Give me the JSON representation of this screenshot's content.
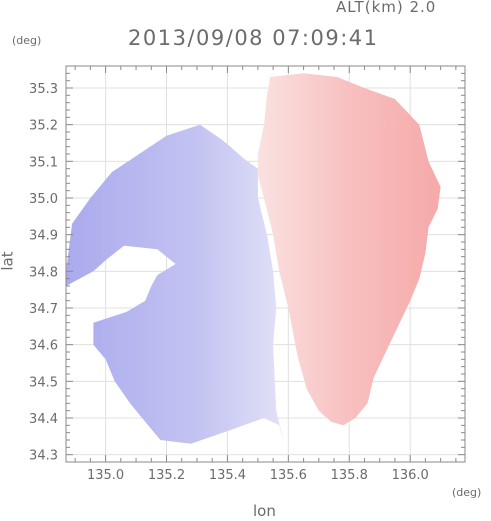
{
  "header": {
    "altitude_label": "ALT(km) 2.0",
    "timestamp": "2013/09/08 07:09:41"
  },
  "axes": {
    "y_unit": "(deg)",
    "x_unit": "(deg)",
    "x_label": "lon",
    "y_label": "lat",
    "x_ticks": [
      "135.0",
      "135.2",
      "135.4",
      "135.6",
      "135.8",
      "136.0"
    ],
    "y_ticks": [
      "35.3",
      "35.2",
      "35.1",
      "35.0",
      "34.9",
      "34.8",
      "34.7",
      "34.6",
      "34.5",
      "34.4",
      "34.3"
    ]
  },
  "colors": {
    "frame": "#8a8a8a",
    "grid": "#e0e0e0",
    "approaching": "#a9a9ee",
    "receding": "#f7b0b0"
  },
  "chart_data": {
    "type": "heatmap",
    "title": "2013/09/08 07:09:41",
    "subtitle": "ALT(km) 2.0",
    "xlabel": "lon",
    "ylabel": "lat",
    "x_unit": "deg",
    "y_unit": "deg",
    "xlim": [
      134.87,
      136.18
    ],
    "ylim": [
      34.28,
      35.36
    ],
    "x_tick_values": [
      135.0,
      135.2,
      135.4,
      135.6,
      135.8,
      136.0
    ],
    "y_tick_values": [
      35.3,
      35.2,
      35.1,
      35.0,
      34.9,
      34.8,
      34.7,
      34.6,
      34.5,
      34.4,
      34.3
    ],
    "grid": true,
    "colormap": "blue (negative) to red (positive) Doppler velocity",
    "regions": [
      {
        "name": "west-negative",
        "color": "#b7b7f0",
        "polygon": [
          [
            135.31,
            35.2
          ],
          [
            135.2,
            35.17
          ],
          [
            135.11,
            35.12
          ],
          [
            135.02,
            35.07
          ],
          [
            134.95,
            35.0
          ],
          [
            134.89,
            34.93
          ],
          [
            134.87,
            34.8
          ],
          [
            134.87,
            34.76
          ],
          [
            134.96,
            34.8
          ],
          [
            135.0,
            34.83
          ],
          [
            135.06,
            34.87
          ],
          [
            135.17,
            34.86
          ],
          [
            135.23,
            34.82
          ],
          [
            135.17,
            34.79
          ],
          [
            135.15,
            34.76
          ],
          [
            135.13,
            34.72
          ],
          [
            135.07,
            34.69
          ],
          [
            134.96,
            34.66
          ],
          [
            134.96,
            34.6
          ],
          [
            135.0,
            34.56
          ],
          [
            135.03,
            34.5
          ],
          [
            135.08,
            34.44
          ],
          [
            135.13,
            34.39
          ],
          [
            135.18,
            34.34
          ],
          [
            135.28,
            34.33
          ],
          [
            135.42,
            34.37
          ],
          [
            135.52,
            34.4
          ],
          [
            135.57,
            34.38
          ],
          [
            135.59,
            34.32
          ],
          [
            135.56,
            34.42
          ],
          [
            135.55,
            34.6
          ],
          [
            135.56,
            34.7
          ],
          [
            135.55,
            34.8
          ],
          [
            135.53,
            34.9
          ],
          [
            135.5,
            35.0
          ],
          [
            135.5,
            35.08
          ],
          [
            135.45,
            35.11
          ],
          [
            135.41,
            35.14
          ],
          [
            135.38,
            35.16
          ]
        ]
      },
      {
        "name": "east-positive",
        "color": "#f8c4c4",
        "polygon": [
          [
            135.54,
            35.33
          ],
          [
            135.65,
            35.34
          ],
          [
            135.76,
            35.33
          ],
          [
            135.85,
            35.3
          ],
          [
            135.95,
            35.27
          ],
          [
            136.03,
            35.2
          ],
          [
            136.06,
            35.1
          ],
          [
            136.1,
            35.03
          ],
          [
            136.09,
            34.97
          ],
          [
            136.06,
            34.92
          ],
          [
            136.05,
            34.85
          ],
          [
            136.03,
            34.78
          ],
          [
            136.0,
            34.72
          ],
          [
            135.96,
            34.65
          ],
          [
            135.92,
            34.58
          ],
          [
            135.88,
            34.51
          ],
          [
            135.86,
            34.44
          ],
          [
            135.82,
            34.4
          ],
          [
            135.78,
            34.38
          ],
          [
            135.74,
            34.39
          ],
          [
            135.7,
            34.42
          ],
          [
            135.66,
            34.48
          ],
          [
            135.63,
            34.57
          ],
          [
            135.6,
            34.7
          ],
          [
            135.57,
            34.8
          ],
          [
            135.55,
            34.9
          ],
          [
            135.52,
            35.0
          ],
          [
            135.5,
            35.06
          ],
          [
            135.5,
            35.12
          ],
          [
            135.52,
            35.2
          ],
          [
            135.53,
            35.28
          ]
        ]
      }
    ]
  }
}
